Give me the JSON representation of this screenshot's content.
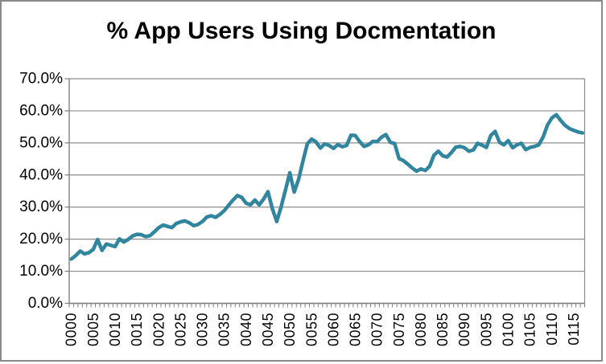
{
  "chart_data": {
    "type": "line",
    "title": "% App Users Using Docmentation",
    "xlabel": "",
    "ylabel": "",
    "legend": "none",
    "grid": "horizontal",
    "ylim": [
      0,
      70
    ],
    "y_unit": "percent",
    "y_tick_labels": [
      "0.0%",
      "10.0%",
      "20.0%",
      "30.0%",
      "40.0%",
      "50.0%",
      "60.0%",
      "70.0%"
    ],
    "y_tick_values": [
      0,
      10,
      20,
      30,
      40,
      50,
      60,
      70
    ],
    "x_tick_labels": [
      "0000",
      "0005",
      "0010",
      "0015",
      "0020",
      "0025",
      "0030",
      "0035",
      "0040",
      "0045",
      "0050",
      "0055",
      "0060",
      "0065",
      "0070",
      "0075",
      "0080",
      "0085",
      "0090",
      "0095",
      "0100",
      "0105",
      "0110",
      "0115"
    ],
    "x_label_interval": 5,
    "x_label_rotation_deg": -90,
    "n_points": 118,
    "series": [
      {
        "name": "",
        "values": [
          13.8,
          14.9,
          16.3,
          15.4,
          15.8,
          16.8,
          19.9,
          16.5,
          18.5,
          18.1,
          17.7,
          20.1,
          19.1,
          19.9,
          21.0,
          21.5,
          21.4,
          20.8,
          21.1,
          22.3,
          23.6,
          24.4,
          24.0,
          23.6,
          24.9,
          25.4,
          25.7,
          25.1,
          24.2,
          24.6,
          25.5,
          26.9,
          27.3,
          26.8,
          27.7,
          28.9,
          30.6,
          32.2,
          33.6,
          33.0,
          31.2,
          30.7,
          32.2,
          30.7,
          32.5,
          34.8,
          29.5,
          25.5,
          30.0,
          35.3,
          40.7,
          34.7,
          38.6,
          44.3,
          49.7,
          51.2,
          50.3,
          48.4,
          49.7,
          49.2,
          48.3,
          49.5,
          48.8,
          49.2,
          52.4,
          52.3,
          50.4,
          48.9,
          49.4,
          50.5,
          50.4,
          51.8,
          52.6,
          50.2,
          49.8,
          45.1,
          44.5,
          43.4,
          42.2,
          41.2,
          41.9,
          41.4,
          42.7,
          46.2,
          47.4,
          46.0,
          45.6,
          47.0,
          48.7,
          48.9,
          48.5,
          47.4,
          47.8,
          49.9,
          49.3,
          48.6,
          52.3,
          53.6,
          50.2,
          49.4,
          50.7,
          48.5,
          49.4,
          49.9,
          47.9,
          48.6,
          48.9,
          49.4,
          51.9,
          55.6,
          57.8,
          58.8,
          57.0,
          55.5,
          54.5,
          53.9,
          53.4,
          53.1
        ]
      }
    ],
    "colors": {
      "line": "#31859C",
      "gridline": "#8C8C8C",
      "axis": "#7F7F7F",
      "tick": "#7F7F7F",
      "label_text": "#000000",
      "title_text": "#000000",
      "frame_border": "#8A8A8A",
      "background": "#FFFFFF"
    }
  }
}
